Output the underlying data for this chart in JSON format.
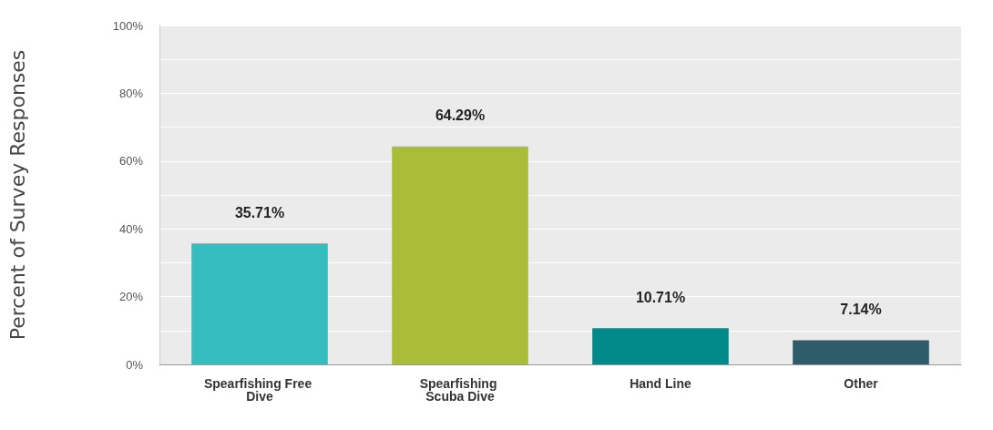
{
  "chart_data": {
    "type": "bar",
    "ylabel": "Percent of Survey Responses",
    "categories": [
      "Spearfishing Free Dive",
      "Spearfishing Scuba Dive",
      "Hand Line",
      "Other"
    ],
    "values": [
      35.71,
      64.29,
      10.71,
      7.14
    ],
    "colors": [
      "#35bdbf",
      "#a9bd38",
      "#008a8a",
      "#2f5c6a"
    ],
    "value_labels": [
      "35.71%",
      "64.29%",
      "10.71%",
      "7.14%"
    ],
    "ylim": [
      0,
      100
    ],
    "yticks": [
      {
        "value": 0,
        "label": "0%"
      },
      {
        "value": 10,
        "label": null
      },
      {
        "value": 20,
        "label": "20%"
      },
      {
        "value": 30,
        "label": null
      },
      {
        "value": 40,
        "label": "40%"
      },
      {
        "value": 50,
        "label": null
      },
      {
        "value": 60,
        "label": "60%"
      },
      {
        "value": 70,
        "label": null
      },
      {
        "value": 80,
        "label": "80%"
      },
      {
        "value": 90,
        "label": null
      },
      {
        "value": 100,
        "label": "100%"
      }
    ],
    "grid": true
  }
}
